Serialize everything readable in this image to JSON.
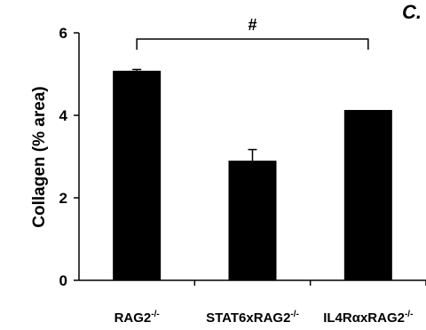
{
  "panel_label": "C.",
  "chart_data": {
    "type": "bar",
    "title": "",
    "xlabel": "",
    "ylabel": "Collagen (% area)",
    "ylim": [
      0,
      6
    ],
    "yticks": [
      0,
      2,
      4,
      6
    ],
    "categories": [
      {
        "base": "RAG2",
        "sup": "-/-"
      },
      {
        "base": "STAT6xRAG2",
        "sup": "-/-"
      },
      {
        "base": "IL4RαxRAG2",
        "sup": "-/-"
      }
    ],
    "values": [
      5.08,
      2.9,
      4.13
    ],
    "errors": [
      0.03,
      0.27,
      0.0
    ],
    "bar_color": "#000000",
    "significance": {
      "label": "#",
      "from": 0,
      "to": 2
    }
  }
}
